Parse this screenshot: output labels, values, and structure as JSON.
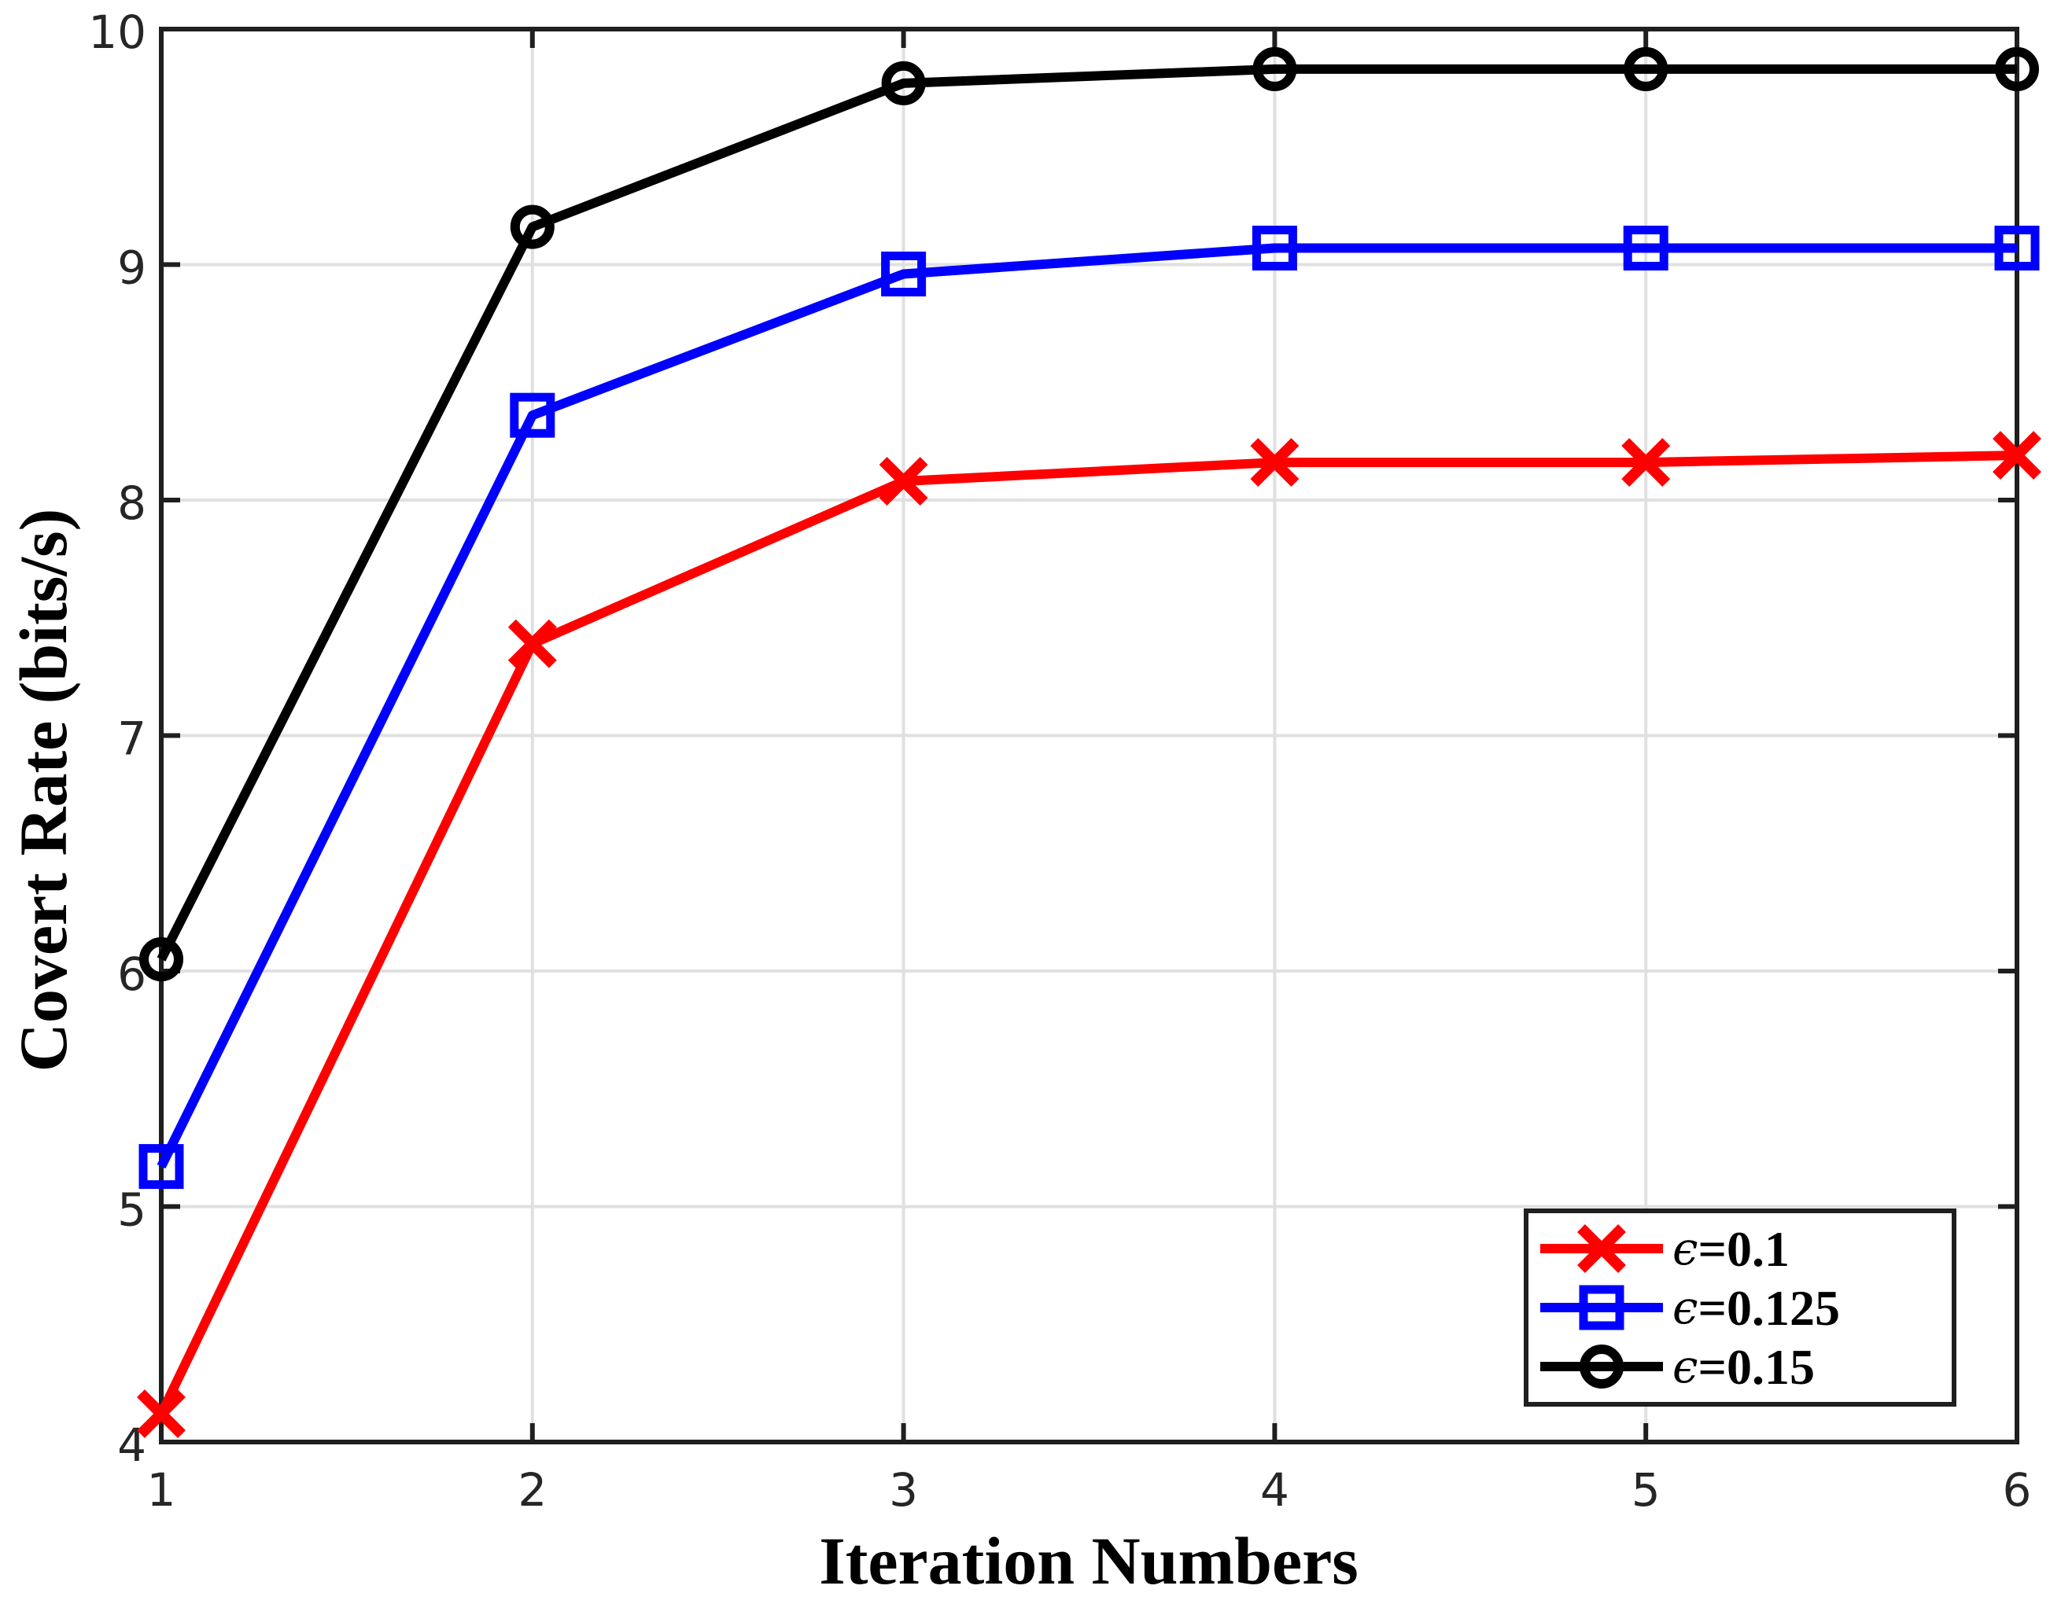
{
  "chart_data": {
    "type": "line",
    "title": "",
    "xlabel": "Iteration Numbers",
    "ylabel": "Covert Rate (bits/s)",
    "xlim": [
      1,
      6
    ],
    "ylim": [
      4,
      10
    ],
    "xticks": [
      "1",
      "2",
      "3",
      "4",
      "5",
      "6"
    ],
    "yticks": [
      "4",
      "5",
      "6",
      "7",
      "8",
      "9",
      "10"
    ],
    "grid": true,
    "legend_position": "lower-right",
    "x": [
      1,
      2,
      3,
      4,
      5,
      6
    ],
    "series": [
      {
        "name": "ϵ=0.1",
        "epsilon_symbol": "ϵ",
        "value_text": "=0.1",
        "color": "#ff0000",
        "marker": "x",
        "values": [
          4.12,
          7.39,
          8.08,
          8.16,
          8.16,
          8.19
        ]
      },
      {
        "name": "ϵ=0.125",
        "epsilon_symbol": "ϵ",
        "value_text": "=0.125",
        "color": "#0000ff",
        "marker": "square",
        "values": [
          5.17,
          8.36,
          8.96,
          9.07,
          9.07,
          9.07
        ]
      },
      {
        "name": "ϵ=0.15",
        "epsilon_symbol": "ϵ",
        "value_text": "=0.15",
        "color": "#000000",
        "marker": "circle",
        "values": [
          6.05,
          9.16,
          9.77,
          9.83,
          9.83,
          9.83
        ]
      }
    ],
    "colors": {
      "grid": "#e0e0e0",
      "axis": "#1f1f1f",
      "tick_label": "#262626",
      "background": "#ffffff"
    }
  }
}
